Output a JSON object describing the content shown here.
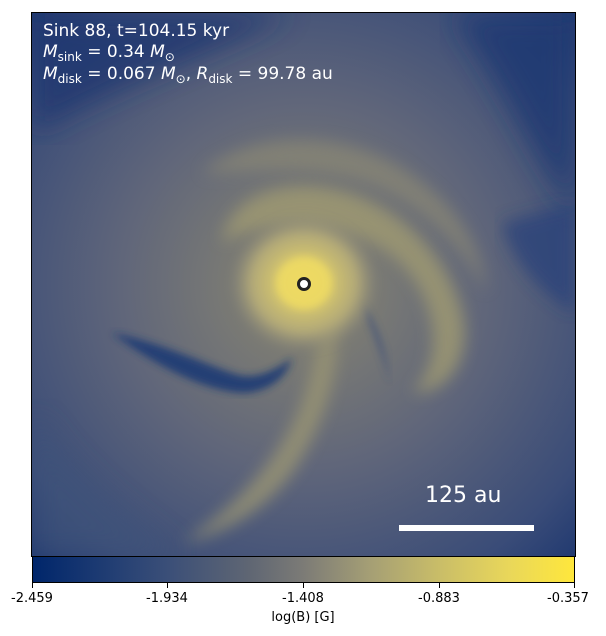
{
  "annotations": {
    "line1": "Sink 88, t=104.15 kyr",
    "line2_symbol": "M",
    "line2_sub": "sink",
    "line2_rest": " = 0.34 ",
    "line2_unit": "M",
    "line2_unit_sub": "⊙",
    "line3_symbol": "M",
    "line3_sub": "disk",
    "line3_mid": " = 0.067 ",
    "line3_unit": "M",
    "line3_unit_sub": "⊙",
    "line3_sep": ", ",
    "line3_symbol2": "R",
    "line3_sub2": "disk",
    "line3_rest": " = 99.78 au"
  },
  "scale_bar": {
    "label": "125 au"
  },
  "colorbar": {
    "label": "log(B) [G]",
    "ticks": [
      "-2.459",
      "-1.934",
      "-1.408",
      "-0.883",
      "-0.357"
    ],
    "colors": [
      "#00266b",
      "#3b4f78",
      "#7c7b76",
      "#c9bd68",
      "#ffe73c"
    ]
  }
}
